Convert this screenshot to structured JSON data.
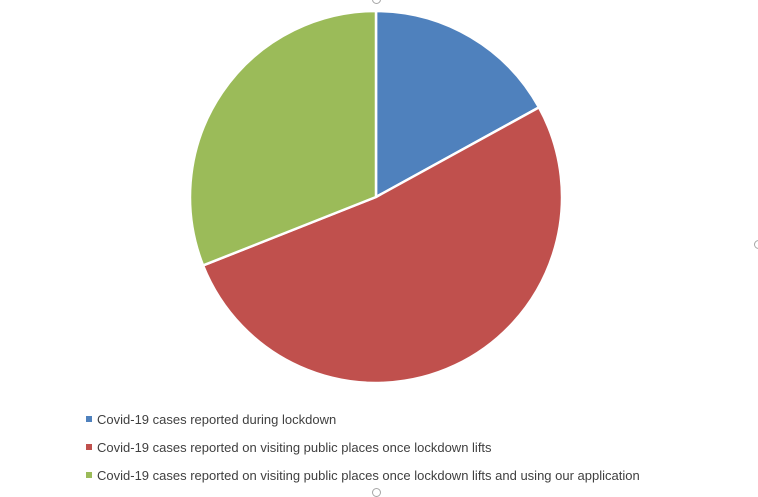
{
  "chart_data": {
    "type": "pie",
    "title": "",
    "slices": [
      {
        "label": "Covid-19 cases reported during lockdown",
        "value": 17,
        "color": "#4F81BD"
      },
      {
        "label": "Covid-19 cases reported on visiting public places once lockdown lifts",
        "value": 52,
        "color": "#C0504D"
      },
      {
        "label": "Covid-19 cases reported on visiting public places once lockdown lifts and using our application",
        "value": 31,
        "color": "#9BBB59"
      }
    ],
    "legend_position": "bottom-left"
  }
}
